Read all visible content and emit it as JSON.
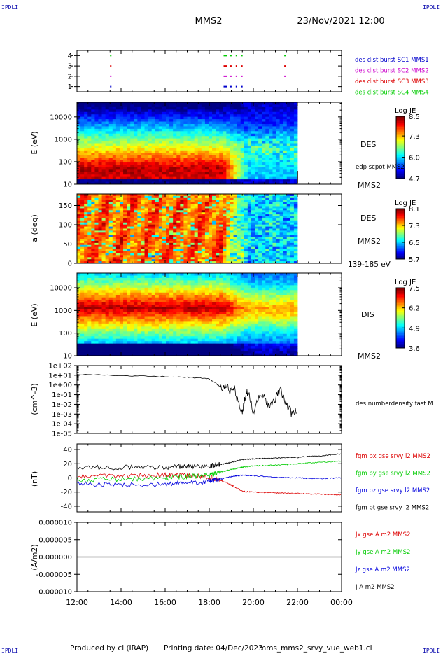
{
  "header": {
    "mission": "MMS2",
    "datetime": "23/Nov/2021 12:00",
    "corner_logo": "IPDLI"
  },
  "footer": {
    "produced_by": "Produced by cl (IRAP)",
    "printing_date": "Printing date: 04/Dec/2023",
    "filename": "mms_mms2_srvy_vue_web1.cl"
  },
  "chart_data": [
    {
      "type": "scatter",
      "panel": "burst-availability",
      "yticks": [
        "1",
        "2",
        "3",
        "4"
      ],
      "ylim": [
        0.5,
        4.5
      ],
      "x": [
        "12:00",
        "14:00",
        "16:00",
        "18:00",
        "20:00",
        "22:00",
        "00:00"
      ],
      "series": [
        {
          "name": "des dist burst SC1 MMS1",
          "level": 1,
          "color": "#0000cc",
          "times_h": [
            13.5,
            18.65,
            18.95,
            19.2,
            19.45
          ]
        },
        {
          "name": "des dist burst SC2 MMS2",
          "level": 2,
          "color": "#cc00cc",
          "times_h": [
            13.5,
            18.65,
            18.95,
            19.2,
            19.45,
            21.4
          ]
        },
        {
          "name": "des dist burst SC3 MMS3",
          "level": 3,
          "color": "#dd0000",
          "times_h": [
            13.5,
            18.65,
            18.95,
            19.2,
            19.45,
            21.4
          ]
        },
        {
          "name": "des dist burst SC4 MMS4",
          "level": 4,
          "color": "#00cc00",
          "times_h": [
            13.5,
            18.65,
            18.95,
            19.2,
            19.45,
            21.4
          ]
        }
      ]
    },
    {
      "type": "heatmap",
      "panel": "electron-energy-spectrogram",
      "ylabel": "E (eV)",
      "yticks": [
        "10",
        "100",
        "1000",
        "10000"
      ],
      "species": "DES",
      "probe": "MMS2",
      "overlay": "edp scpot MMS2",
      "colorbar": {
        "title": "Log JE",
        "ticks": [
          "4.7",
          "6.0",
          "7.3",
          "8.5"
        ],
        "min": 4.7,
        "max": 8.5
      },
      "data_end": "22:00"
    },
    {
      "type": "heatmap",
      "panel": "electron-pitch-angle",
      "ylabel": "a (deg)",
      "yticks": [
        "0",
        "50",
        "100",
        "150"
      ],
      "ylim": [
        0,
        180
      ],
      "species": "DES",
      "probe": "MMS2",
      "energy_range": "139-185 eV",
      "colorbar": {
        "title": "Log JE",
        "ticks": [
          "5.7",
          "6.5",
          "7.3",
          "8.1"
        ],
        "min": 5.7,
        "max": 8.1
      }
    },
    {
      "type": "heatmap",
      "panel": "ion-energy-spectrogram",
      "ylabel": "E (eV)",
      "yticks": [
        "10",
        "100",
        "1000",
        "10000"
      ],
      "species": "DIS",
      "probe": "MMS2",
      "colorbar": {
        "title": "Log JE",
        "ticks": [
          "3.6",
          "4.9",
          "6.2",
          "7.5"
        ],
        "min": 3.6,
        "max": 7.5
      }
    },
    {
      "type": "line",
      "panel": "density",
      "ylabel": "(cm^-3)",
      "yticks": [
        "1e-05",
        "1e-04",
        "1e-03",
        "1e-02",
        "1e-01",
        "1e+00",
        "1e+01",
        "1e+02"
      ],
      "yscale": "log",
      "ylim_exp": [
        -5,
        2
      ],
      "series": [
        {
          "name": "des numberdensity fast M",
          "color": "#000000",
          "points": [
            [
              12.0,
              12
            ],
            [
              13.0,
              11
            ],
            [
              14.0,
              9
            ],
            [
              15.0,
              8
            ],
            [
              16.0,
              7
            ],
            [
              17.0,
              6
            ],
            [
              17.5,
              5.5
            ],
            [
              18.0,
              4
            ],
            [
              18.25,
              2
            ],
            [
              18.5,
              0.6
            ],
            [
              18.75,
              0.8
            ],
            [
              19.0,
              0.15
            ],
            [
              19.1,
              1.0
            ],
            [
              19.3,
              0.02
            ],
            [
              19.5,
              0.001
            ],
            [
              19.6,
              0.05
            ],
            [
              19.75,
              0.2
            ],
            [
              20.0,
              0.002
            ],
            [
              20.25,
              0.1
            ],
            [
              20.5,
              0.05
            ],
            [
              20.75,
              0.005
            ],
            [
              21.0,
              0.04
            ],
            [
              21.25,
              0.3
            ],
            [
              21.5,
              0.01
            ],
            [
              21.75,
              0.001
            ],
            [
              22.0,
              0.002
            ]
          ]
        }
      ]
    },
    {
      "type": "line",
      "panel": "magnetic-field",
      "ylabel": "(nT)",
      "yticks": [
        "-40",
        "-20",
        "0",
        "20",
        "40"
      ],
      "ylim": [
        -48,
        48
      ],
      "series": [
        {
          "name": "fgm bx gse srvy l2 MMS2",
          "color": "#dd0000",
          "points": [
            [
              12,
              2
            ],
            [
              14,
              3
            ],
            [
              16,
              4
            ],
            [
              17,
              3
            ],
            [
              18,
              1
            ],
            [
              18.5,
              -3
            ],
            [
              19.0,
              -10
            ],
            [
              19.5,
              -19
            ],
            [
              20,
              -20
            ],
            [
              21,
              -21
            ],
            [
              22,
              -22
            ],
            [
              23,
              -23
            ],
            [
              24,
              -24
            ]
          ]
        },
        {
          "name": "fgm by gse srvy l2 MMS2",
          "color": "#00cc00",
          "points": [
            [
              12,
              -3
            ],
            [
              14,
              -2
            ],
            [
              16,
              0
            ],
            [
              17,
              2
            ],
            [
              18,
              4
            ],
            [
              18.5,
              8
            ],
            [
              19.0,
              12
            ],
            [
              19.5,
              15
            ],
            [
              20,
              17
            ],
            [
              21,
              18
            ],
            [
              22,
              20
            ],
            [
              23,
              22
            ],
            [
              24,
              24
            ]
          ]
        },
        {
          "name": "fgm bz gse srvy l2 MMS2",
          "color": "#0000dd",
          "points": [
            [
              12,
              -8
            ],
            [
              14,
              -10
            ],
            [
              16,
              -9
            ],
            [
              17,
              -7
            ],
            [
              18,
              -5
            ],
            [
              18.5,
              -2
            ],
            [
              19.0,
              2
            ],
            [
              19.5,
              4
            ],
            [
              20,
              3
            ],
            [
              21,
              1
            ],
            [
              22,
              0
            ],
            [
              23,
              -1
            ],
            [
              24,
              0
            ]
          ]
        },
        {
          "name": "fgm bt gse srvy l2 MMS2",
          "color": "#000000",
          "points": [
            [
              12,
              14
            ],
            [
              14,
              15
            ],
            [
              16,
              15
            ],
            [
              17,
              16
            ],
            [
              18,
              17
            ],
            [
              18.5,
              19
            ],
            [
              19.0,
              22
            ],
            [
              19.5,
              26
            ],
            [
              20,
              27
            ],
            [
              21,
              28
            ],
            [
              22,
              29
            ],
            [
              23,
              31
            ],
            [
              24,
              34
            ]
          ]
        }
      ]
    },
    {
      "type": "line",
      "panel": "current-density",
      "ylabel": "(A/m2)",
      "yticks": [
        "-0.000010",
        "-0.000005",
        "0.000000",
        "0.000005",
        "0.000010"
      ],
      "ylim": [
        -1e-05,
        1e-05
      ],
      "series": [
        {
          "name": "Jx gse A m2 MMS2",
          "color": "#dd0000"
        },
        {
          "name": "Jy gse A m2 MMS2",
          "color": "#00cc00"
        },
        {
          "name": "Jz gse A m2 MMS2",
          "color": "#0000dd"
        },
        {
          "name": "J A m2 MMS2",
          "color": "#000000"
        }
      ],
      "value": 0
    }
  ],
  "xaxis": {
    "ticks": [
      "12:00",
      "14:00",
      "16:00",
      "18:00",
      "20:00",
      "22:00",
      "00:00"
    ],
    "range_h": [
      12,
      24
    ]
  }
}
